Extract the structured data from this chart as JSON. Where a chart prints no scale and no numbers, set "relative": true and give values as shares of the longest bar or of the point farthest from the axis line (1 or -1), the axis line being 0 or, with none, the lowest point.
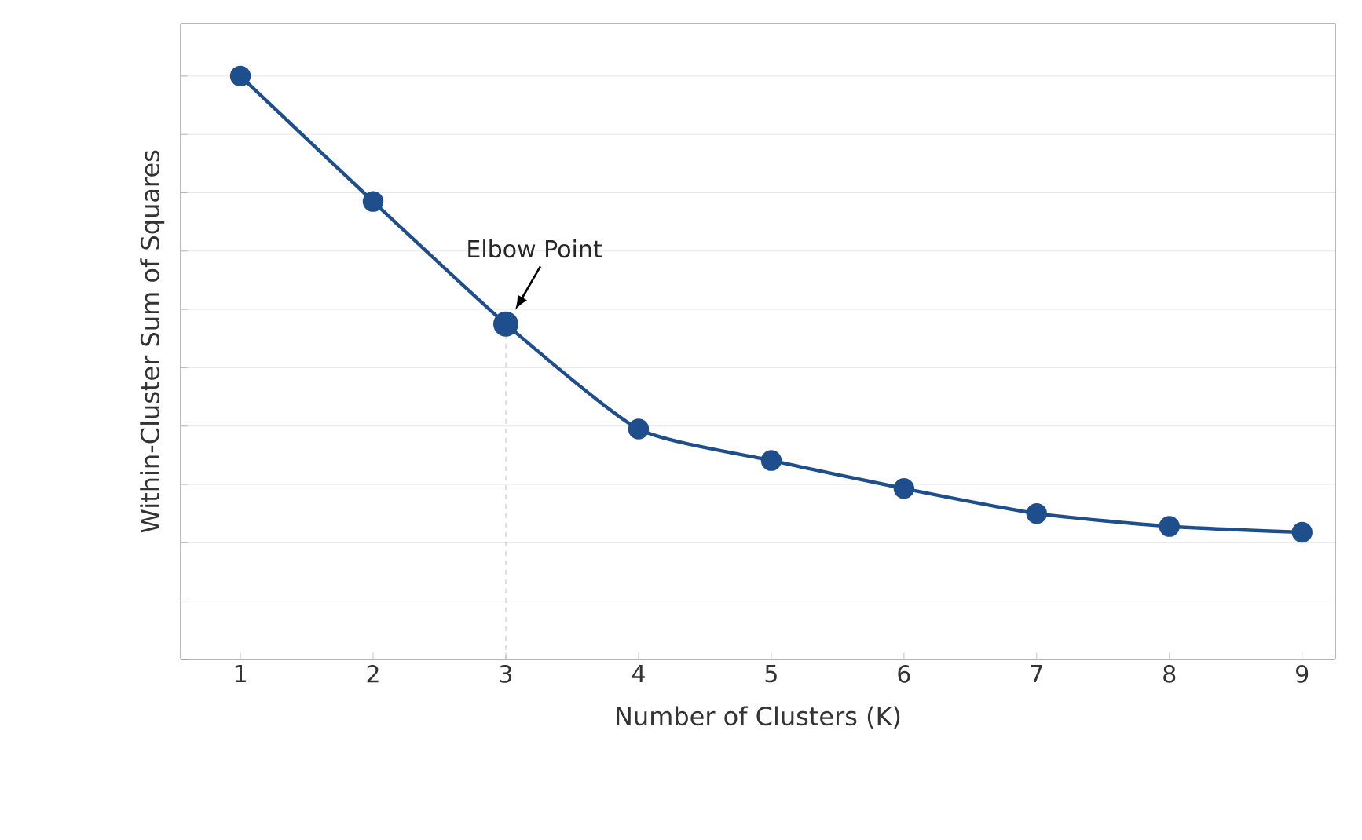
{
  "chart_data": {
    "type": "line",
    "relative": true,
    "xlabel": "Number of Clusters (K)",
    "ylabel": "Within-Cluster Sum of Squares",
    "x": [
      1,
      2,
      3,
      4,
      5,
      6,
      7,
      8,
      9
    ],
    "xlim": [
      0.55,
      9.25
    ],
    "xticks": [
      1,
      2,
      3,
      4,
      5,
      6,
      7,
      8,
      9
    ],
    "series": [
      {
        "color": "#1f4e8c",
        "values": [
          1,
          0.785,
          0.575,
          0.395,
          0.341,
          0.293,
          0.25,
          0.228,
          0.218
        ]
      }
    ],
    "marker": "circle",
    "line_style": "solid",
    "grid": "y",
    "tick_labels": "x",
    "annotations": [
      {
        "text": "Elbow Point",
        "x": 3,
        "y": 0.575
      }
    ],
    "ref_lines": [
      {
        "axis": "x",
        "value": 3,
        "color": "#b0b0b0",
        "line_style": "dashed"
      }
    ]
  }
}
